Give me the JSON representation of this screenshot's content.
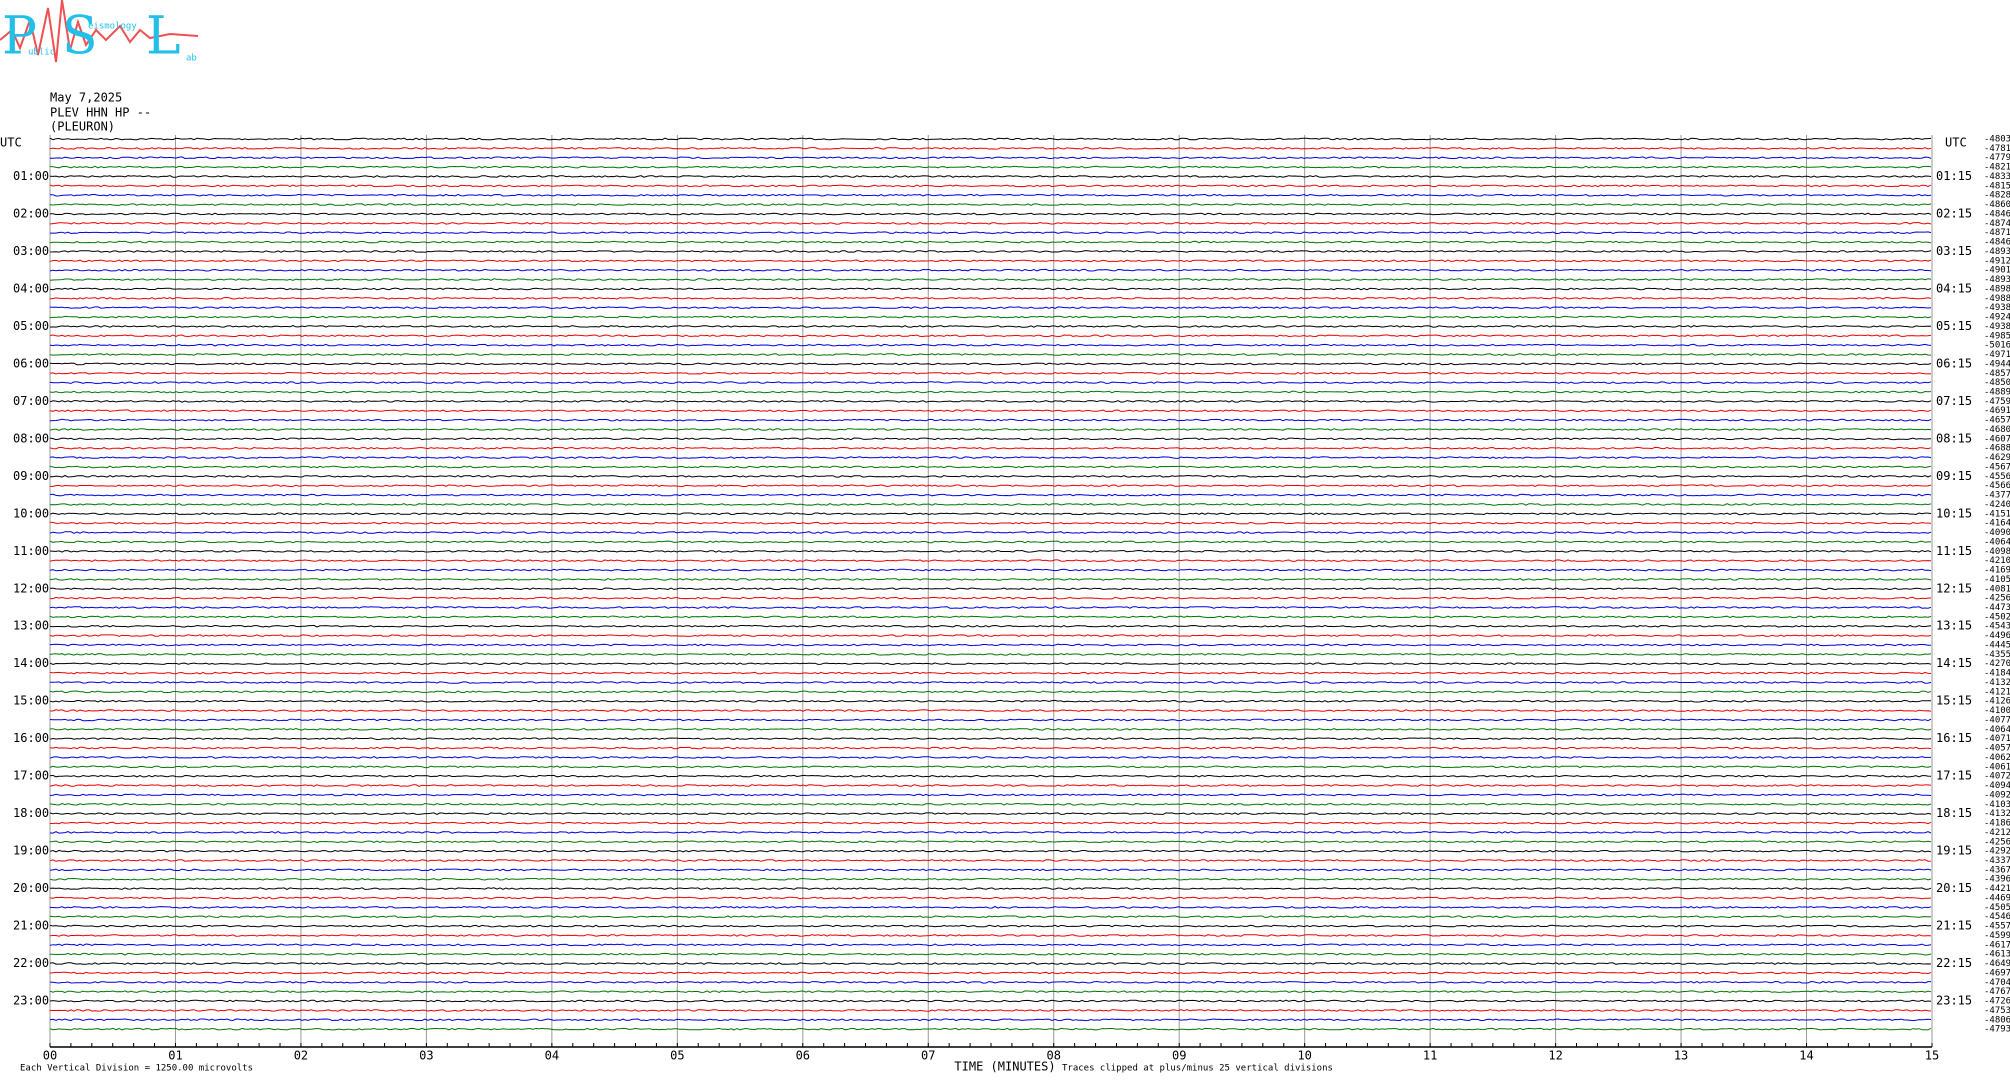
{
  "header": {
    "logo_letters": [
      "P",
      "S",
      "L"
    ],
    "logo_words": [
      "ublic",
      "eismology",
      "ab"
    ],
    "date": "May 7,2025",
    "station": "PLEV HHN HP --",
    "location": "(PLEURON)"
  },
  "chart_data": {
    "type": "helicorder",
    "x_label": "TIME (MINUTES)",
    "left_axis_title": "UTC",
    "right_axis_title": "UTC",
    "xlim": [
      0,
      15
    ],
    "xticks": [
      {
        "value": 0,
        "label": "00"
      },
      {
        "value": 1,
        "label": "01"
      },
      {
        "value": 2,
        "label": "02"
      },
      {
        "value": 3,
        "label": "03"
      },
      {
        "value": 4,
        "label": "04"
      },
      {
        "value": 5,
        "label": "05"
      },
      {
        "value": 6,
        "label": "06"
      },
      {
        "value": 7,
        "label": "07"
      },
      {
        "value": 8,
        "label": "08"
      },
      {
        "value": 9,
        "label": "09"
      },
      {
        "value": 10,
        "label": "10"
      },
      {
        "value": 11,
        "label": "11"
      },
      {
        "value": 12,
        "label": "12"
      },
      {
        "value": 13,
        "label": "13"
      },
      {
        "value": 14,
        "label": "14"
      },
      {
        "value": 15,
        "label": "15"
      }
    ],
    "hour_labels_left": [
      "01:00",
      "02:00",
      "03:00",
      "04:00",
      "05:00",
      "06:00",
      "07:00",
      "08:00",
      "09:00",
      "10:00",
      "11:00",
      "12:00",
      "13:00",
      "14:00",
      "15:00",
      "16:00",
      "17:00",
      "18:00",
      "19:00",
      "20:00",
      "21:00",
      "22:00",
      "23:00"
    ],
    "hour_labels_right": [
      "01:15",
      "02:15",
      "03:15",
      "04:15",
      "05:15",
      "06:15",
      "07:15",
      "08:15",
      "09:15",
      "10:15",
      "11:15",
      "12:15",
      "13:15",
      "14:15",
      "15:15",
      "16:15",
      "17:15",
      "18:15",
      "19:15",
      "20:15",
      "21:15",
      "22:15",
      "23:15"
    ],
    "trace_colors": [
      "#000000",
      "#ee0000",
      "#0000dd",
      "#007700"
    ],
    "trace_offsets": [
      -4803,
      -4781,
      -4779,
      -4821,
      -4833,
      -4815,
      -4828,
      -4860,
      -4846,
      -4874,
      -4871,
      -4846,
      -4893,
      -4912,
      -4901,
      -4893,
      -4898,
      -4988,
      -4938,
      -4924,
      -4938,
      -4985,
      -5016,
      -4971,
      -4944,
      -4857,
      -4850,
      -4889,
      -4759,
      -4691,
      -4657,
      -4680,
      -4607,
      -4688,
      -4629,
      -4567,
      -4556,
      -4566,
      -4377,
      -4240,
      -4151,
      -4164,
      -4090,
      -4064,
      -4098,
      -4210,
      -4169,
      -4105,
      -4081,
      -4256,
      -4473,
      -4502,
      -4543,
      -4496,
      -4445,
      -4355,
      -4270,
      -4184,
      -4132,
      -4121,
      -4126,
      -4100,
      -4077,
      -4064,
      -4071,
      -4057,
      -4062,
      -4061,
      -4072,
      -4094,
      -4092,
      -4103,
      -4132,
      -4186,
      -4212,
      -4256,
      -4292,
      -4337,
      -4367,
      -4396,
      -4421,
      -4469,
      -4505,
      -4546,
      -4557,
      -4599,
      -4617,
      -4613,
      -4649,
      -4697,
      -4704,
      -4767,
      -4726,
      -4753,
      -4806,
      -4793
    ],
    "scale_note": "Each Vertical Division = 1250.00 microvolts",
    "clip_note": "Traces clipped at plus/minus 25 vertical divisions"
  }
}
